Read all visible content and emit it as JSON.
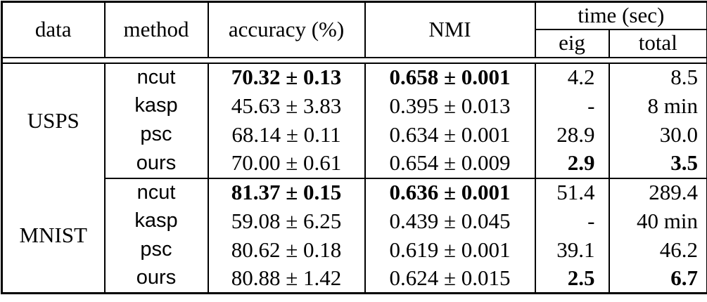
{
  "header": {
    "data": "data",
    "method": "method",
    "accuracy": "accuracy (%)",
    "nmi": "NMI",
    "time_group": "time (sec)",
    "eig": "eig",
    "total": "total"
  },
  "groups": [
    {
      "dataset": "USPS",
      "rows": [
        {
          "method": "ncut",
          "accuracy": "70.32 ± 0.13",
          "accuracy_bold": true,
          "nmi": "0.658 ± 0.001",
          "nmi_bold": true,
          "eig": "4.2",
          "eig_bold": false,
          "total": "8.5",
          "total_bold": false
        },
        {
          "method": "kasp",
          "accuracy": "45.63 ± 3.83",
          "accuracy_bold": false,
          "nmi": "0.395 ± 0.013",
          "nmi_bold": false,
          "eig": "-",
          "eig_bold": false,
          "total": "8 min",
          "total_bold": false
        },
        {
          "method": "psc",
          "accuracy": "68.14 ± 0.11",
          "accuracy_bold": false,
          "nmi": "0.634 ± 0.001",
          "nmi_bold": false,
          "eig": "28.9",
          "eig_bold": false,
          "total": "30.0",
          "total_bold": false
        },
        {
          "method": "ours",
          "accuracy": "70.00 ± 0.61",
          "accuracy_bold": false,
          "nmi": "0.654 ± 0.009",
          "nmi_bold": false,
          "eig": "2.9",
          "eig_bold": true,
          "total": "3.5",
          "total_bold": true
        }
      ]
    },
    {
      "dataset": "MNIST",
      "rows": [
        {
          "method": "ncut",
          "accuracy": "81.37 ± 0.15",
          "accuracy_bold": true,
          "nmi": "0.636 ± 0.001",
          "nmi_bold": true,
          "eig": "51.4",
          "eig_bold": false,
          "total": "289.4",
          "total_bold": false
        },
        {
          "method": "kasp",
          "accuracy": "59.08 ± 6.25",
          "accuracy_bold": false,
          "nmi": "0.439 ± 0.045",
          "nmi_bold": false,
          "eig": "-",
          "eig_bold": false,
          "total": "40 min",
          "total_bold": false
        },
        {
          "method": "psc",
          "accuracy": "80.62 ± 0.18",
          "accuracy_bold": false,
          "nmi": "0.619 ± 0.001",
          "nmi_bold": false,
          "eig": "39.1",
          "eig_bold": false,
          "total": "46.2",
          "total_bold": false
        },
        {
          "method": "ours",
          "accuracy": "80.88 ± 1.42",
          "accuracy_bold": false,
          "nmi": "0.624 ± 0.015",
          "nmi_bold": false,
          "eig": "2.5",
          "eig_bold": true,
          "total": "6.7",
          "total_bold": true
        }
      ]
    }
  ],
  "colors": {
    "text": "#000000",
    "border": "#000000",
    "background": "#ffffff"
  },
  "chart_data": {
    "type": "table",
    "columns": [
      "data",
      "method",
      "accuracy (%)",
      "NMI",
      "time (sec) eig",
      "time (sec) total"
    ],
    "rows": [
      [
        "USPS",
        "ncut",
        "70.32 ± 0.13",
        "0.658 ± 0.001",
        "4.2",
        "8.5"
      ],
      [
        "USPS",
        "kasp",
        "45.63 ± 3.83",
        "0.395 ± 0.013",
        "-",
        "8 min"
      ],
      [
        "USPS",
        "psc",
        "68.14 ± 0.11",
        "0.634 ± 0.001",
        "28.9",
        "30.0"
      ],
      [
        "USPS",
        "ours",
        "70.00 ± 0.61",
        "0.654 ± 0.009",
        "2.9",
        "3.5"
      ],
      [
        "MNIST",
        "ncut",
        "81.37 ± 0.15",
        "0.636 ± 0.001",
        "51.4",
        "289.4"
      ],
      [
        "MNIST",
        "kasp",
        "59.08 ± 6.25",
        "0.439 ± 0.045",
        "-",
        "40 min"
      ],
      [
        "MNIST",
        "psc",
        "80.62 ± 0.18",
        "0.619 ± 0.001",
        "39.1",
        "46.2"
      ],
      [
        "MNIST",
        "ours",
        "80.88 ± 1.42",
        "0.624 ± 0.015",
        "2.5",
        "6.7"
      ]
    ]
  }
}
